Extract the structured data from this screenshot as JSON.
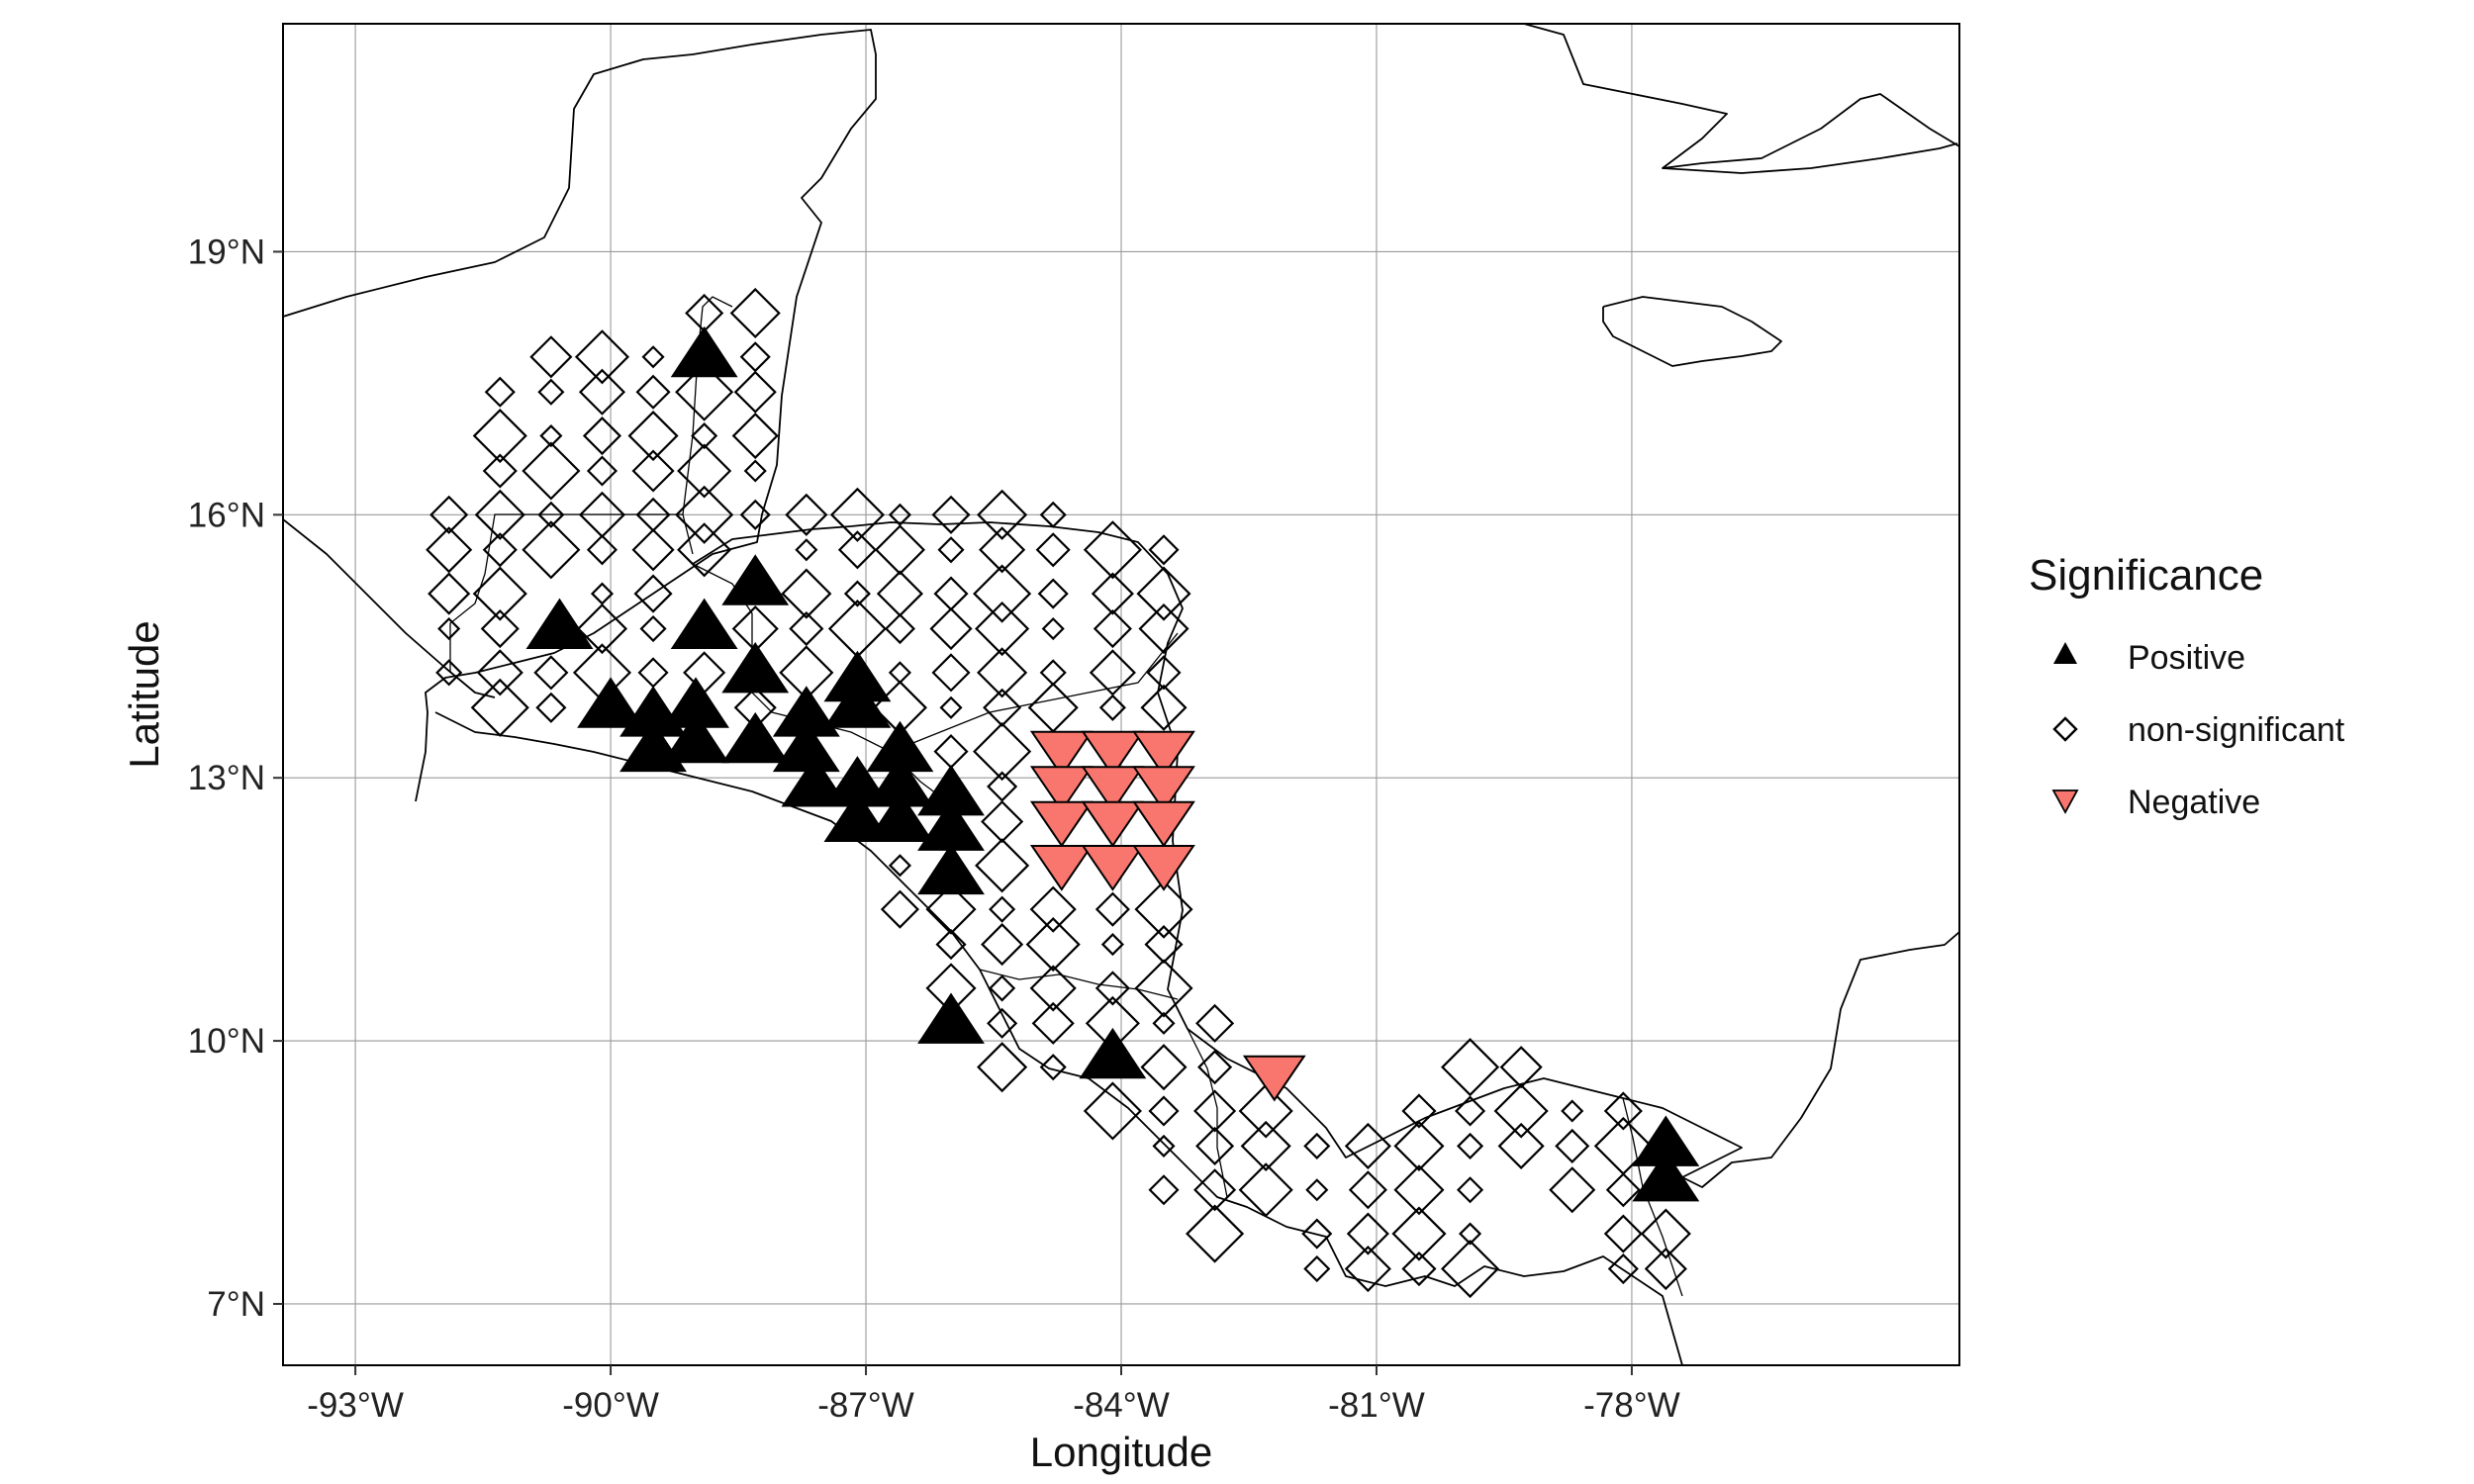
{
  "map": {
    "xlabel": "Longitude",
    "ylabel": "Latitude",
    "x_ticks": [
      {
        "lon": -93,
        "label": "-93°W"
      },
      {
        "lon": -90,
        "label": "-90°W"
      },
      {
        "lon": -87,
        "label": "-87°W"
      },
      {
        "lon": -84,
        "label": "-84°W"
      },
      {
        "lon": -81,
        "label": "-81°W"
      },
      {
        "lon": -78,
        "label": "-78°W"
      }
    ],
    "y_ticks": [
      {
        "lat": 7,
        "label": "7°N"
      },
      {
        "lat": 10,
        "label": "10°N"
      },
      {
        "lat": 13,
        "label": "13°N"
      },
      {
        "lat": 16,
        "label": "16°N"
      },
      {
        "lat": 19,
        "label": "19°N"
      }
    ],
    "xlim": [
      -93.85,
      -74.15
    ],
    "ylim": [
      6.3,
      21.6
    ],
    "grid": true
  },
  "legend": {
    "title": "Significance",
    "items": [
      {
        "key": "positive",
        "label": "Positive",
        "symbol": "triangle-up",
        "color": "#000000"
      },
      {
        "key": "nonsig",
        "label": "non-significant",
        "symbol": "diamond-open",
        "color": "#000000"
      },
      {
        "key": "negative",
        "label": "Negative",
        "symbol": "triangle-down",
        "color": "#F8766D"
      }
    ]
  },
  "chart_data": {
    "type": "scatter",
    "xlabel": "Longitude",
    "ylabel": "Latitude",
    "xlim": [
      -93.85,
      -74.15
    ],
    "ylim": [
      6.3,
      21.6
    ],
    "legend_title": "Significance",
    "legend_position": "right",
    "series": [
      {
        "name": "Positive",
        "points": [
          [
            -88.9,
            17.8
          ],
          [
            -90.6,
            14.7
          ],
          [
            -88.9,
            14.7
          ],
          [
            -88.3,
            15.2
          ],
          [
            -88.3,
            14.2
          ],
          [
            -90.0,
            13.8
          ],
          [
            -89.5,
            13.7
          ],
          [
            -89.5,
            13.3
          ],
          [
            -89.0,
            13.8
          ],
          [
            -89.0,
            13.4
          ],
          [
            -88.3,
            13.4
          ],
          [
            -87.7,
            13.7
          ],
          [
            -87.7,
            13.3
          ],
          [
            -87.6,
            12.9
          ],
          [
            -87.1,
            14.1
          ],
          [
            -87.1,
            13.8
          ],
          [
            -87.1,
            12.9
          ],
          [
            -87.1,
            12.5
          ],
          [
            -86.6,
            13.3
          ],
          [
            -86.6,
            12.9
          ],
          [
            -86.6,
            12.5
          ],
          [
            -86.0,
            12.8
          ],
          [
            -86.0,
            12.4
          ],
          [
            -86.0,
            11.9
          ],
          [
            -86.0,
            10.2
          ],
          [
            -84.1,
            9.8
          ],
          [
            -77.6,
            8.8
          ],
          [
            -77.6,
            8.4
          ]
        ]
      },
      {
        "name": "Negative",
        "points": [
          [
            -84.7,
            13.3
          ],
          [
            -84.1,
            13.3
          ],
          [
            -83.5,
            13.3
          ],
          [
            -84.7,
            12.9
          ],
          [
            -84.1,
            12.9
          ],
          [
            -83.5,
            12.9
          ],
          [
            -84.7,
            12.5
          ],
          [
            -84.1,
            12.5
          ],
          [
            -83.5,
            12.5
          ],
          [
            -84.7,
            12.0
          ],
          [
            -84.1,
            12.0
          ],
          [
            -83.5,
            12.0
          ],
          [
            -82.2,
            9.6
          ]
        ]
      },
      {
        "name": "non-significant",
        "points": [
          [
            -91.3,
            17.4
          ],
          [
            -90.7,
            17.8
          ],
          [
            -90.1,
            17.8
          ],
          [
            -89.5,
            17.8
          ],
          [
            -88.9,
            18.3
          ],
          [
            -88.3,
            18.3
          ],
          [
            -90.7,
            17.4
          ],
          [
            -90.1,
            17.4
          ],
          [
            -89.5,
            17.4
          ],
          [
            -88.9,
            17.4
          ],
          [
            -88.3,
            17.8
          ],
          [
            -88.3,
            17.4
          ],
          [
            -91.3,
            16.9
          ],
          [
            -90.7,
            16.9
          ],
          [
            -90.1,
            16.9
          ],
          [
            -89.5,
            16.9
          ],
          [
            -88.9,
            16.9
          ],
          [
            -88.3,
            16.9
          ],
          [
            -91.3,
            16.5
          ],
          [
            -90.7,
            16.5
          ],
          [
            -90.1,
            16.5
          ],
          [
            -89.5,
            16.5
          ],
          [
            -88.9,
            16.5
          ],
          [
            -88.3,
            16.5
          ],
          [
            -91.9,
            16.0
          ],
          [
            -91.3,
            16.0
          ],
          [
            -90.7,
            16.0
          ],
          [
            -90.1,
            16.0
          ],
          [
            -89.5,
            16.0
          ],
          [
            -88.9,
            16.0
          ],
          [
            -88.3,
            16.0
          ],
          [
            -87.7,
            16.0
          ],
          [
            -87.1,
            16.0
          ],
          [
            -86.6,
            16.0
          ],
          [
            -86.0,
            16.0
          ],
          [
            -85.4,
            16.0
          ],
          [
            -84.8,
            16.0
          ],
          [
            -91.9,
            15.6
          ],
          [
            -91.3,
            15.6
          ],
          [
            -90.7,
            15.6
          ],
          [
            -90.1,
            15.6
          ],
          [
            -89.5,
            15.6
          ],
          [
            -88.9,
            15.6
          ],
          [
            -87.7,
            15.6
          ],
          [
            -87.1,
            15.6
          ],
          [
            -86.6,
            15.6
          ],
          [
            -86.0,
            15.6
          ],
          [
            -85.4,
            15.6
          ],
          [
            -84.8,
            15.6
          ],
          [
            -84.1,
            15.6
          ],
          [
            -83.5,
            15.6
          ],
          [
            -91.9,
            15.1
          ],
          [
            -91.3,
            15.1
          ],
          [
            -90.1,
            15.1
          ],
          [
            -89.5,
            15.1
          ],
          [
            -87.7,
            15.1
          ],
          [
            -87.1,
            15.1
          ],
          [
            -86.6,
            15.1
          ],
          [
            -86.0,
            15.1
          ],
          [
            -85.4,
            15.1
          ],
          [
            -84.8,
            15.1
          ],
          [
            -84.1,
            15.1
          ],
          [
            -83.5,
            15.1
          ],
          [
            -91.9,
            14.7
          ],
          [
            -91.3,
            14.7
          ],
          [
            -90.1,
            14.7
          ],
          [
            -89.5,
            14.7
          ],
          [
            -88.3,
            14.7
          ],
          [
            -87.7,
            14.7
          ],
          [
            -87.1,
            14.7
          ],
          [
            -86.6,
            14.7
          ],
          [
            -86.0,
            14.7
          ],
          [
            -85.4,
            14.7
          ],
          [
            -84.8,
            14.7
          ],
          [
            -84.1,
            14.7
          ],
          [
            -83.5,
            14.7
          ],
          [
            -91.9,
            14.2
          ],
          [
            -91.3,
            14.2
          ],
          [
            -90.7,
            14.2
          ],
          [
            -90.1,
            14.2
          ],
          [
            -89.5,
            14.2
          ],
          [
            -88.9,
            14.2
          ],
          [
            -87.7,
            14.2
          ],
          [
            -86.6,
            14.2
          ],
          [
            -86.0,
            14.2
          ],
          [
            -85.4,
            14.2
          ],
          [
            -84.8,
            14.2
          ],
          [
            -84.1,
            14.2
          ],
          [
            -83.5,
            14.2
          ],
          [
            -91.3,
            13.8
          ],
          [
            -90.7,
            13.8
          ],
          [
            -88.3,
            13.8
          ],
          [
            -86.6,
            13.8
          ],
          [
            -86.0,
            13.8
          ],
          [
            -85.4,
            13.8
          ],
          [
            -84.8,
            13.8
          ],
          [
            -84.1,
            13.8
          ],
          [
            -83.5,
            13.8
          ],
          [
            -86.0,
            13.3
          ],
          [
            -85.4,
            13.3
          ],
          [
            -85.4,
            12.9
          ],
          [
            -85.4,
            12.5
          ],
          [
            -85.4,
            12.0
          ],
          [
            -86.6,
            12.0
          ],
          [
            -86.6,
            11.5
          ],
          [
            -86.0,
            11.5
          ],
          [
            -85.4,
            11.5
          ],
          [
            -84.8,
            11.5
          ],
          [
            -84.1,
            11.5
          ],
          [
            -83.5,
            11.5
          ],
          [
            -86.0,
            11.1
          ],
          [
            -85.4,
            11.1
          ],
          [
            -84.8,
            11.1
          ],
          [
            -84.1,
            11.1
          ],
          [
            -83.5,
            11.1
          ],
          [
            -86.0,
            10.6
          ],
          [
            -85.4,
            10.6
          ],
          [
            -84.8,
            10.6
          ],
          [
            -84.1,
            10.6
          ],
          [
            -83.5,
            10.6
          ],
          [
            -85.4,
            10.2
          ],
          [
            -84.8,
            10.2
          ],
          [
            -84.1,
            10.2
          ],
          [
            -83.5,
            10.2
          ],
          [
            -82.9,
            10.2
          ],
          [
            -85.4,
            9.7
          ],
          [
            -84.8,
            9.7
          ],
          [
            -83.5,
            9.7
          ],
          [
            -82.9,
            9.7
          ],
          [
            -84.1,
            9.2
          ],
          [
            -83.5,
            9.2
          ],
          [
            -82.9,
            9.2
          ],
          [
            -82.3,
            9.2
          ],
          [
            -83.5,
            8.8
          ],
          [
            -82.9,
            8.8
          ],
          [
            -82.3,
            8.8
          ],
          [
            -81.7,
            8.8
          ],
          [
            -81.1,
            8.8
          ],
          [
            -80.5,
            9.2
          ],
          [
            -79.9,
            9.7
          ],
          [
            -79.9,
            9.2
          ],
          [
            -79.3,
            9.7
          ],
          [
            -79.3,
            9.2
          ],
          [
            -78.7,
            9.2
          ],
          [
            -78.1,
            9.2
          ],
          [
            -80.5,
            8.8
          ],
          [
            -79.9,
            8.8
          ],
          [
            -79.3,
            8.8
          ],
          [
            -78.7,
            8.8
          ],
          [
            -78.1,
            8.8
          ],
          [
            -83.5,
            8.3
          ],
          [
            -82.9,
            8.3
          ],
          [
            -82.3,
            8.3
          ],
          [
            -81.7,
            8.3
          ],
          [
            -81.1,
            8.3
          ],
          [
            -80.5,
            8.3
          ],
          [
            -79.9,
            8.3
          ],
          [
            -78.7,
            8.3
          ],
          [
            -78.1,
            8.3
          ],
          [
            -82.9,
            7.8
          ],
          [
            -81.7,
            7.8
          ],
          [
            -81.1,
            7.8
          ],
          [
            -80.5,
            7.8
          ],
          [
            -79.9,
            7.8
          ],
          [
            -78.1,
            7.8
          ],
          [
            -77.6,
            7.8
          ],
          [
            -81.7,
            7.4
          ],
          [
            -81.1,
            7.4
          ],
          [
            -80.5,
            7.4
          ],
          [
            -79.9,
            7.4
          ],
          [
            -78.1,
            7.4
          ],
          [
            -77.6,
            7.4
          ]
        ]
      }
    ]
  }
}
